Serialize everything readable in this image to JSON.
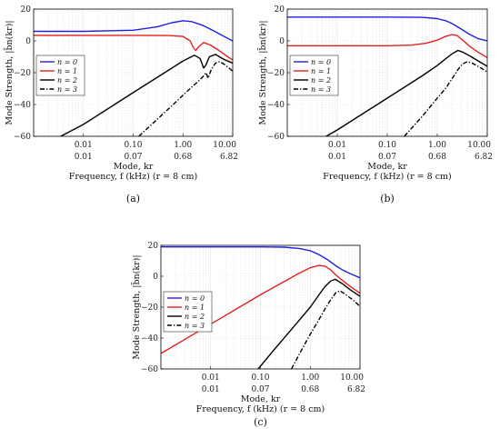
{
  "colors": {
    "n0": "#1f1fe6",
    "n1": "#e61f1f",
    "n2": "#000000",
    "n3": "#000000",
    "grid": "#e2e2e2"
  },
  "chart_data": [
    {
      "type": "line",
      "panel": "(a)",
      "title": "",
      "xlabel": "Mode, kr",
      "xlabel2": "Frequency, f (kHz) (r = 8 cm)",
      "ylabel": "Mode Strength, |b̄n(kr)|",
      "xscale": "log",
      "xlim": [
        0.001,
        10
      ],
      "ylim": [
        -60,
        20
      ],
      "x_ticks": [
        0.01,
        0.1,
        1,
        10
      ],
      "x_tick_labels": [
        "0.01",
        "0.10",
        "1.00",
        "10.00"
      ],
      "freq_tick_labels": [
        "0.01",
        "0.07",
        "0.68",
        "6.82"
      ],
      "y_ticks": [
        20,
        0,
        -20,
        -40,
        -60
      ],
      "y_tick_labels": [
        "20",
        "0",
        "−20",
        "−40",
        "−60"
      ],
      "grid": true,
      "legend_position": "middle-left",
      "series": [
        {
          "name": "n = 0",
          "style": "solid",
          "color": "#1f1fe6",
          "x": [
            0.001,
            0.01,
            0.1,
            0.3,
            0.6,
            1.0,
            1.5,
            2.5,
            4,
            6.5,
            10
          ],
          "y": [
            6.0,
            6.0,
            6.7,
            8.8,
            11.4,
            12.7,
            12.1,
            9.8,
            6.6,
            3.0,
            0
          ]
        },
        {
          "name": "n = 1",
          "style": "solid",
          "color": "#e61f1f",
          "x": [
            0.001,
            0.1,
            0.5,
            1.0,
            1.4,
            1.6,
            1.8,
            2.1,
            2.6,
            3.5,
            5,
            7.5,
            10
          ],
          "y": [
            3.5,
            3.5,
            3.4,
            2.8,
            0.0,
            -4.0,
            -6.0,
            -3.5,
            -1.0,
            -2.5,
            -5.5,
            -9.5,
            -12
          ]
        },
        {
          "name": "n = 2",
          "style": "solid",
          "color": "#000000",
          "x": [
            0.0035,
            0.01,
            0.1,
            0.5,
            1.0,
            1.7,
            2.2,
            2.6,
            2.9,
            3.4,
            4.5,
            6.5,
            10
          ],
          "y": [
            -60,
            -52.5,
            -32.5,
            -18.6,
            -12.6,
            -9.0,
            -11.0,
            -17.0,
            -15.0,
            -10.0,
            -8.5,
            -11.5,
            -14.0
          ]
        },
        {
          "name": "n = 3",
          "style": "dashdot",
          "color": "#000000",
          "x": [
            0.13,
            0.3,
            0.7,
            1.0,
            1.5,
            2.1,
            2.6,
            2.9,
            3.2,
            3.7,
            4.5,
            5.5,
            7,
            10
          ],
          "y": [
            -60,
            -49.5,
            -38.8,
            -34.2,
            -29.0,
            -25.0,
            -22.0,
            -20.0,
            -23.5,
            -18.0,
            -14.0,
            -13.0,
            -15.0,
            -19.0
          ]
        }
      ]
    },
    {
      "type": "line",
      "panel": "(b)",
      "title": "",
      "xlabel": "Mode, kr",
      "xlabel2": "Frequency, f (kHz) (r = 8 cm)",
      "ylabel": "Mode Strength, |b̄n(kr)|",
      "xscale": "log",
      "xlim": [
        0.001,
        10
      ],
      "ylim": [
        -60,
        20
      ],
      "x_ticks": [
        0.01,
        0.1,
        1,
        10
      ],
      "x_tick_labels": [
        "0.01",
        "0.10",
        "1.00",
        "10.00"
      ],
      "freq_tick_labels": [
        "0.01",
        "0.07",
        "0.68",
        "6.82"
      ],
      "y_ticks": [
        20,
        0,
        -20,
        -40,
        -60
      ],
      "y_tick_labels": [
        "20",
        "0",
        "−20",
        "−40",
        "−60"
      ],
      "grid": true,
      "legend_position": "middle-left",
      "series": [
        {
          "name": "n = 0",
          "style": "solid",
          "color": "#1f1fe6",
          "x": [
            0.001,
            0.1,
            0.5,
            1.0,
            1.5,
            2.0,
            3.0,
            4.5,
            6.5,
            10
          ],
          "y": [
            15.0,
            15.0,
            14.8,
            14.0,
            12.6,
            10.8,
            7.5,
            4.0,
            1.5,
            0
          ]
        },
        {
          "name": "n = 1",
          "style": "solid",
          "color": "#e61f1f",
          "x": [
            0.001,
            0.1,
            0.3,
            0.6,
            1.0,
            1.5,
            2.0,
            2.5,
            3.2,
            4.5,
            6.5,
            10
          ],
          "y": [
            -3.0,
            -3.0,
            -2.7,
            -1.5,
            0.5,
            3.0,
            4.0,
            3.3,
            0.5,
            -3.5,
            -7.0,
            -10.5
          ]
        },
        {
          "name": "n = 2",
          "style": "solid",
          "color": "#000000",
          "x": [
            0.006,
            0.01,
            0.1,
            0.5,
            1.0,
            1.5,
            2.0,
            2.6,
            3.2,
            4.5,
            6.5,
            10
          ],
          "y": [
            -60,
            -56.0,
            -36.0,
            -22.0,
            -15.5,
            -11.0,
            -8.0,
            -6.0,
            -7.0,
            -9.5,
            -12.5,
            -16.0
          ]
        },
        {
          "name": "n = 3",
          "style": "dashdot",
          "color": "#000000",
          "x": [
            0.22,
            0.5,
            1.0,
            1.5,
            2.0,
            2.6,
            3.2,
            4.0,
            5.0,
            7.0,
            10
          ],
          "y": [
            -60,
            -47.5,
            -36.0,
            -29.5,
            -23.5,
            -18.0,
            -14.5,
            -13.0,
            -14.0,
            -16.5,
            -19.5
          ]
        }
      ]
    },
    {
      "type": "line",
      "panel": "(c)",
      "title": "",
      "xlabel": "Mode, kr",
      "xlabel2": "Frequency, f (kHz) (r = 8 cm)",
      "ylabel": "Mode Strength, |b̄n(kr)|",
      "xscale": "log",
      "xlim": [
        0.001,
        10
      ],
      "ylim": [
        -60,
        20
      ],
      "x_ticks": [
        0.01,
        0.1,
        1,
        10
      ],
      "x_tick_labels": [
        "0.01",
        "0.10",
        "1.00",
        "10.00"
      ],
      "freq_tick_labels": [
        "0.01",
        "0.07",
        "0.68",
        "6.82"
      ],
      "y_ticks": [
        20,
        0,
        -20,
        -40,
        -60
      ],
      "y_tick_labels": [
        "20",
        "0",
        "−20",
        "−40",
        "−60"
      ],
      "grid": true,
      "legend_position": "middle-left",
      "series": [
        {
          "name": "n = 0",
          "style": "solid",
          "color": "#1f1fe6",
          "x": [
            0.001,
            0.1,
            0.3,
            0.6,
            1.0,
            1.5,
            2.2,
            3.2,
            4.5,
            6.5,
            10
          ],
          "y": [
            19.0,
            19.0,
            18.8,
            18.0,
            16.5,
            14.0,
            10.8,
            7.0,
            4.0,
            1.5,
            -1.0
          ]
        },
        {
          "name": "n = 1",
          "style": "solid",
          "color": "#e61f1f",
          "x": [
            0.001,
            0.01,
            0.1,
            0.3,
            0.6,
            1.0,
            1.5,
            2.0,
            2.6,
            3.5,
            5.0,
            7.0,
            10
          ],
          "y": [
            -50.0,
            -31.0,
            -12.0,
            -3.5,
            2.0,
            5.5,
            7.0,
            6.5,
            4.0,
            0.0,
            -4.0,
            -7.5,
            -11.0
          ]
        },
        {
          "name": "n = 2",
          "style": "solid",
          "color": "#000000",
          "x": [
            0.09,
            0.2,
            0.5,
            1.0,
            1.5,
            2.0,
            2.6,
            3.2,
            4.5,
            6.5,
            10
          ],
          "y": [
            -60,
            -46.5,
            -31.5,
            -20.0,
            -12.0,
            -6.5,
            -3.0,
            -2.0,
            -5.0,
            -9.0,
            -13.0
          ]
        },
        {
          "name": "n = 3",
          "style": "dashdot",
          "color": "#000000",
          "x": [
            0.42,
            0.7,
            1.0,
            1.5,
            2.0,
            2.6,
            3.3,
            4.0,
            5.0,
            7.0,
            10
          ],
          "y": [
            -60,
            -46.5,
            -37.5,
            -28.0,
            -21.0,
            -15.0,
            -10.5,
            -9.5,
            -11.5,
            -15.0,
            -19.5
          ]
        }
      ]
    }
  ]
}
